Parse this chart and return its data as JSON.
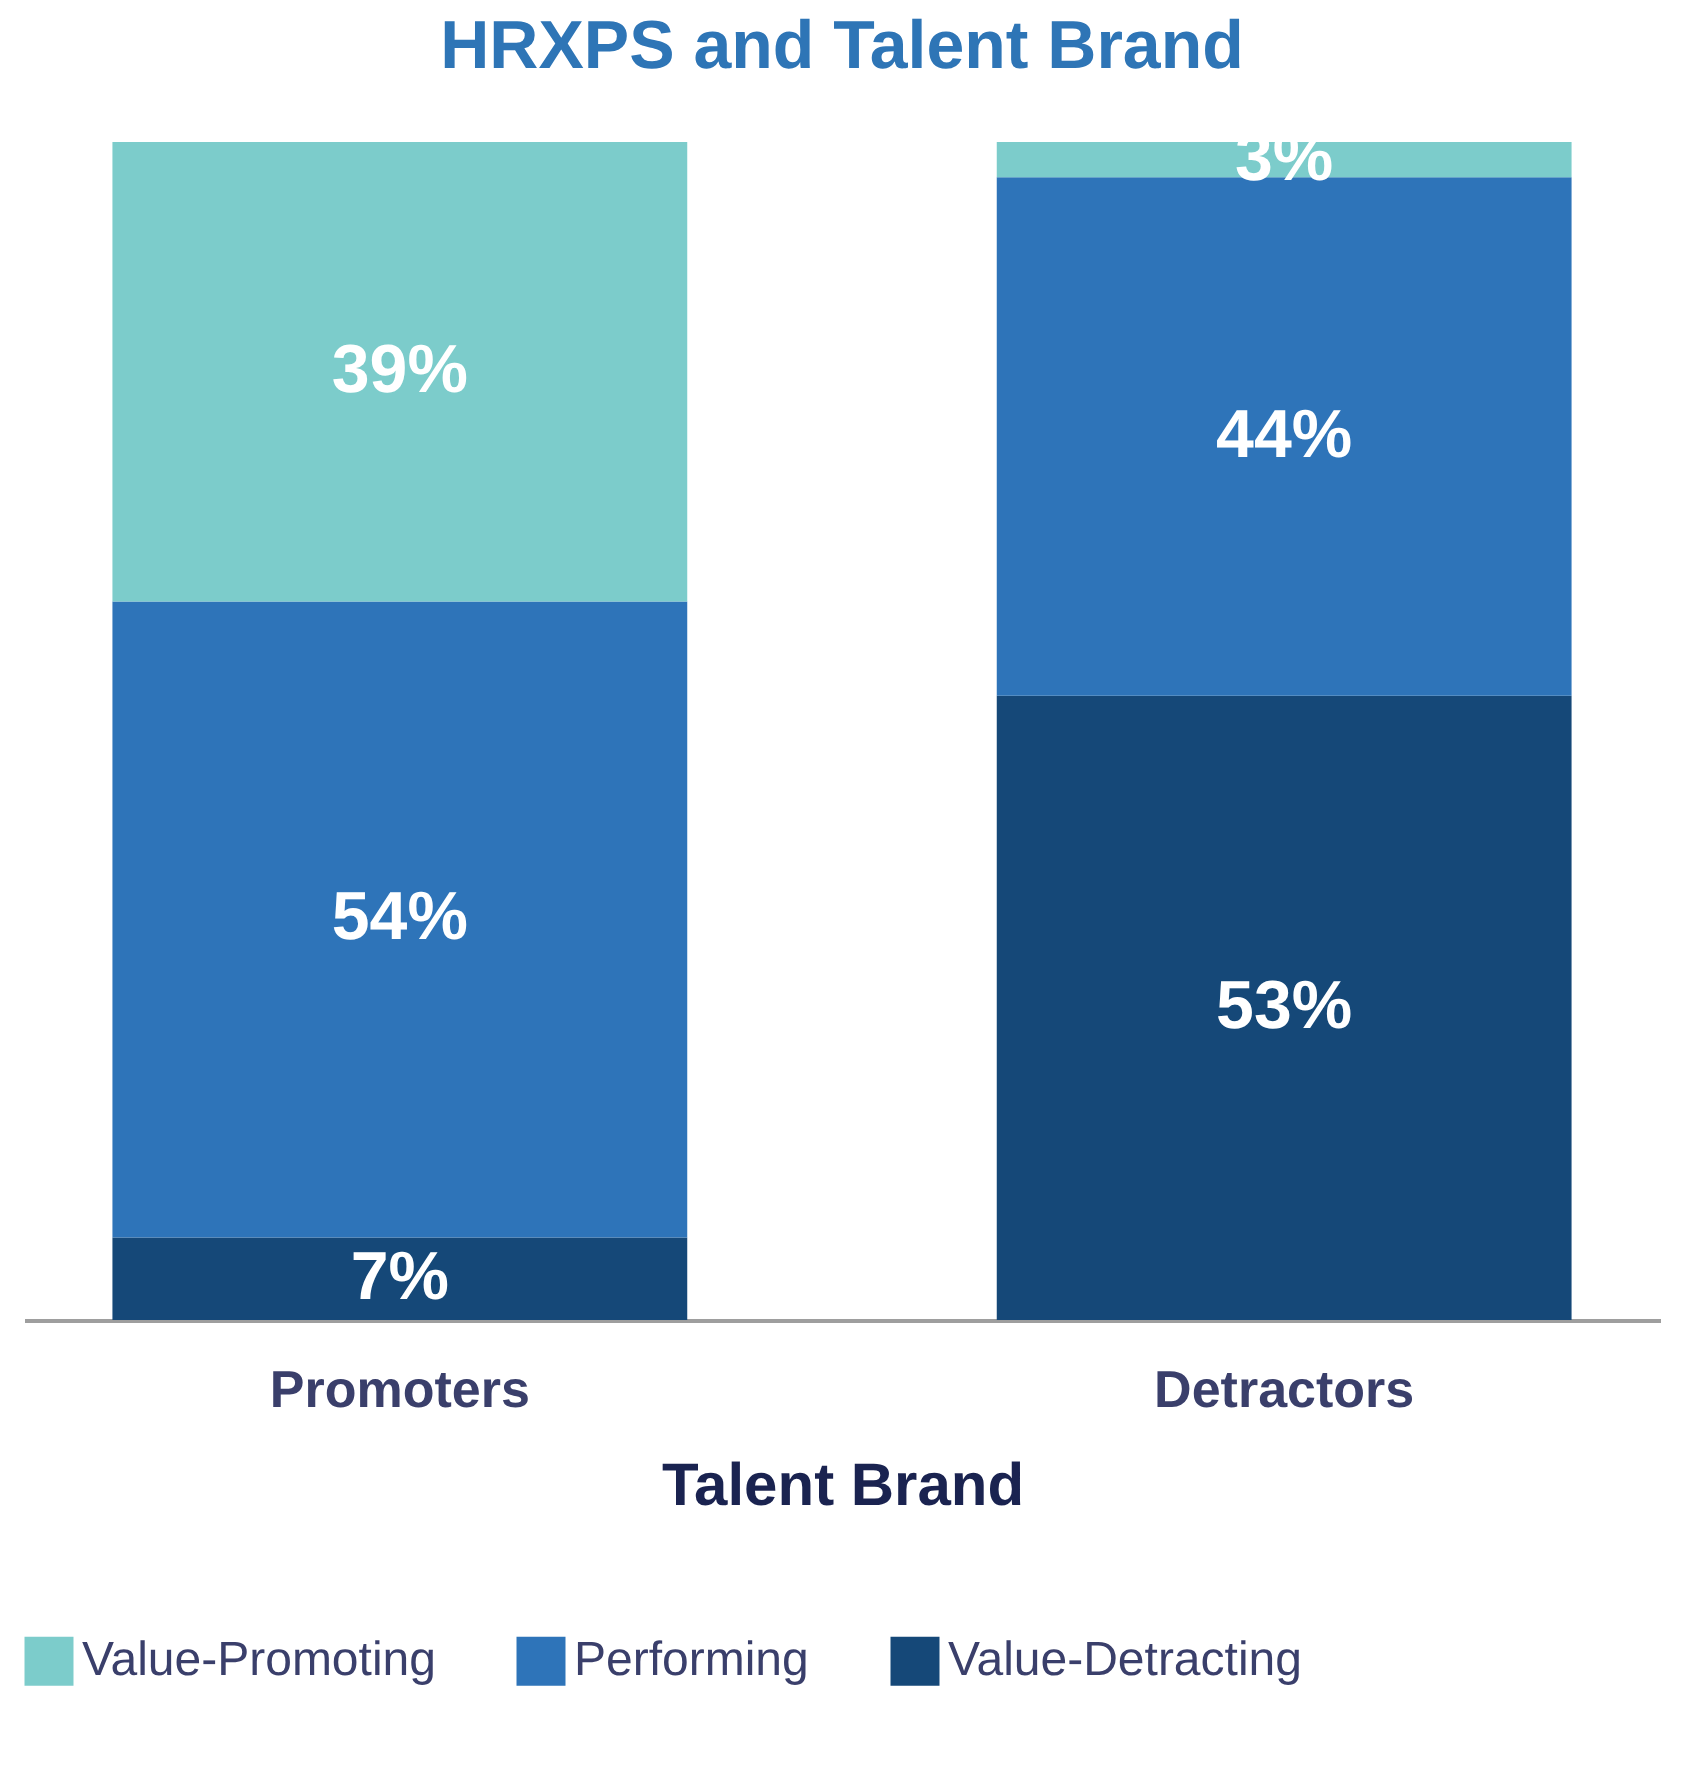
{
  "chart_data": {
    "type": "bar",
    "title": "HRXPS and Talent Brand",
    "xlabel": "Talent Brand",
    "categories": [
      "Promoters",
      "Detractors"
    ],
    "stacked": true,
    "legend": "bottom",
    "grid": false,
    "series": [
      {
        "name": "Value-Detracting",
        "color": "#154878",
        "values": [
          7,
          53
        ],
        "value_labels": [
          "7%",
          "53%"
        ]
      },
      {
        "name": "Performing",
        "color": "#2e74b9",
        "values": [
          54,
          44
        ],
        "value_labels": [
          "54%",
          "44%"
        ]
      },
      {
        "name": "Value-Promoting",
        "color": "#7ccccb",
        "values": [
          39,
          3
        ],
        "value_labels": [
          "39%",
          "3%"
        ]
      }
    ]
  }
}
